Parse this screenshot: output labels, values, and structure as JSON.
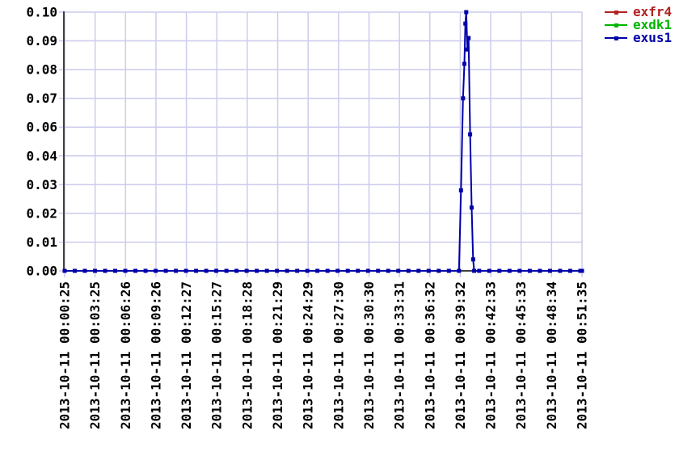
{
  "chart_data": {
    "type": "line",
    "title": "",
    "grid": true,
    "legend_position": "top-right",
    "x_axis": {
      "tick_labels": [
        "2013-10-11 00:00:25",
        "2013-10-11 00:03:25",
        "2013-10-11 00:06:26",
        "2013-10-11 00:09:26",
        "2013-10-11 00:12:27",
        "2013-10-11 00:15:27",
        "2013-10-11 00:18:28",
        "2013-10-11 00:21:29",
        "2013-10-11 00:24:29",
        "2013-10-11 00:27:30",
        "2013-10-11 00:30:30",
        "2013-10-11 00:33:31",
        "2013-10-11 00:36:32",
        "2013-10-11 00:39:32",
        "2013-10-11 00:42:33",
        "2013-10-11 00:45:33",
        "2013-10-11 00:48:34",
        "2013-10-11 00:51:35"
      ],
      "span_seconds": 3070,
      "label_rotation_degrees": 90
    },
    "y_axis": {
      "tick_labels": [
        "0.00",
        "0.01",
        "0.02",
        "0.03",
        "0.04",
        "0.06",
        "0.07",
        "0.08",
        "0.09",
        "0.10"
      ],
      "tick_values": [
        0,
        0.01,
        0.02,
        0.03,
        0.04,
        0.06,
        0.07,
        0.08,
        0.09,
        0.1
      ],
      "range": [
        0,
        0.1
      ]
    },
    "sample_interval_seconds": 60,
    "series": [
      {
        "name": "exfr4",
        "color": "#b22222",
        "marker": "square",
        "points": []
      },
      {
        "name": "exdk1",
        "color": "#00b400",
        "marker": "square",
        "points": []
      },
      {
        "name": "exus1",
        "color": "#0000a8",
        "marker": "square",
        "points": [
          [
            0,
            0
          ],
          [
            60,
            0
          ],
          [
            120,
            0
          ],
          [
            180,
            0
          ],
          [
            240,
            0
          ],
          [
            300,
            0
          ],
          [
            360,
            0
          ],
          [
            420,
            0
          ],
          [
            480,
            0
          ],
          [
            540,
            0
          ],
          [
            600,
            0
          ],
          [
            660,
            0
          ],
          [
            720,
            0
          ],
          [
            780,
            0
          ],
          [
            840,
            0
          ],
          [
            900,
            0
          ],
          [
            960,
            0
          ],
          [
            1020,
            0
          ],
          [
            1080,
            0
          ],
          [
            1140,
            0
          ],
          [
            1200,
            0
          ],
          [
            1260,
            0
          ],
          [
            1320,
            0
          ],
          [
            1380,
            0
          ],
          [
            1440,
            0
          ],
          [
            1500,
            0
          ],
          [
            1560,
            0
          ],
          [
            1620,
            0
          ],
          [
            1680,
            0
          ],
          [
            1740,
            0
          ],
          [
            1800,
            0
          ],
          [
            1860,
            0
          ],
          [
            1920,
            0
          ],
          [
            1980,
            0
          ],
          [
            2040,
            0
          ],
          [
            2100,
            0
          ],
          [
            2160,
            0
          ],
          [
            2220,
            0
          ],
          [
            2280,
            0
          ],
          [
            2340,
            0
          ],
          [
            2352,
            0.028
          ],
          [
            2364,
            0.07
          ],
          [
            2372,
            0.082
          ],
          [
            2378,
            0.096
          ],
          [
            2383,
            0.1
          ],
          [
            2390,
            0.087
          ],
          [
            2397,
            0.091
          ],
          [
            2406,
            0.055
          ],
          [
            2415,
            0.022
          ],
          [
            2424,
            0.004
          ],
          [
            2430,
            0
          ],
          [
            2460,
            0
          ],
          [
            2520,
            0
          ],
          [
            2580,
            0
          ],
          [
            2640,
            0
          ],
          [
            2700,
            0
          ],
          [
            2760,
            0
          ],
          [
            2820,
            0
          ],
          [
            2880,
            0
          ],
          [
            2940,
            0
          ],
          [
            3000,
            0
          ],
          [
            3060,
            0
          ],
          [
            3070,
            0
          ]
        ]
      }
    ]
  },
  "colors": {
    "background": "#ffffff",
    "grid": "#ccccee",
    "axis": "#404040",
    "tick_text": "#000000"
  }
}
